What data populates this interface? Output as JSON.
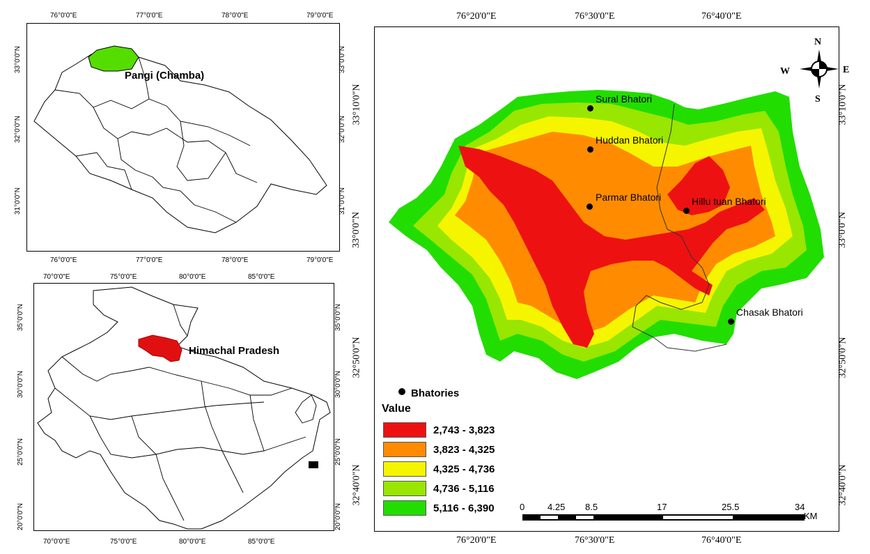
{
  "top_left_map": {
    "x_ticks_top": [
      "76°0'0\"E",
      "77°0'0\"E",
      "78°0'0\"E",
      "79°0'0\"E"
    ],
    "x_ticks_bottom": [
      "76°0'0\"E",
      "77°0'0\"E",
      "78°0'0\"E",
      "79°0'0\"E"
    ],
    "y_ticks_left": [
      "33°0'0\"N",
      "32°0'0\"N",
      "31°0'0\"N"
    ],
    "y_ticks_right": [
      "33°0'0\"N",
      "32°0'0\"N",
      "31°0'0\"N"
    ],
    "highlight_label": "Pangi (Chamba)",
    "highlight_color": "#55dd00"
  },
  "bottom_left_map": {
    "x_ticks_top": [
      "70°0'0\"E",
      "75°0'0\"E",
      "80°0'0\"E",
      "85°0'0\"E"
    ],
    "x_ticks_bottom": [
      "70°0'0\"E",
      "75°0'0\"E",
      "80°0'0\"E",
      "85°0'0\"E"
    ],
    "y_ticks_left": [
      "35°0'0\"N",
      "30°0'0\"N",
      "25°0'0\"N",
      "20°0'0\"N"
    ],
    "y_ticks_right": [
      "35°0'0\"N",
      "30°0'0\"N",
      "25°0'0\"N",
      "20°0'0\"N"
    ],
    "highlight_label": "Himachal Pradesh",
    "highlight_color": "#e01010"
  },
  "main_map": {
    "x_ticks_top": [
      "76°20'0\"E",
      "76°30'0\"E",
      "76°40'0\"E"
    ],
    "x_ticks_bottom": [
      "76°20'0\"E",
      "76°30'0\"E",
      "76°40'0\"E"
    ],
    "y_ticks_left": [
      "33°10'0\"N",
      "33°0'0\"N",
      "32°50'0\"N",
      "32°40'0\"N"
    ],
    "y_ticks_right": [
      "33°10'0\"N",
      "33°0'0\"N",
      "32°50'0\"N",
      "32°40'0\"N"
    ],
    "places": [
      "Sural Bhatori",
      "Huddan Bhatori",
      "Parmar Bhatori",
      "Hillu tuan Bhatori",
      "Chasak Bhatori"
    ],
    "compass": {
      "n": "N",
      "s": "S",
      "e": "E",
      "w": "W"
    }
  },
  "legend": {
    "point_label": "Bhatories",
    "title": "Value",
    "classes": [
      {
        "label": "2,743 - 3,823",
        "color": "#ee1111"
      },
      {
        "label": "3,823 - 4,325",
        "color": "#ff8c00"
      },
      {
        "label": "4,325 - 4,736",
        "color": "#f5f500"
      },
      {
        "label": "4,736 - 5,116",
        "color": "#99e600"
      },
      {
        "label": "5,116 - 6,390",
        "color": "#22dd00"
      }
    ]
  },
  "scale_bar": {
    "ticks": [
      "0",
      "4.25",
      "8.5",
      "17",
      "25.5",
      "34"
    ],
    "unit": "KM"
  }
}
